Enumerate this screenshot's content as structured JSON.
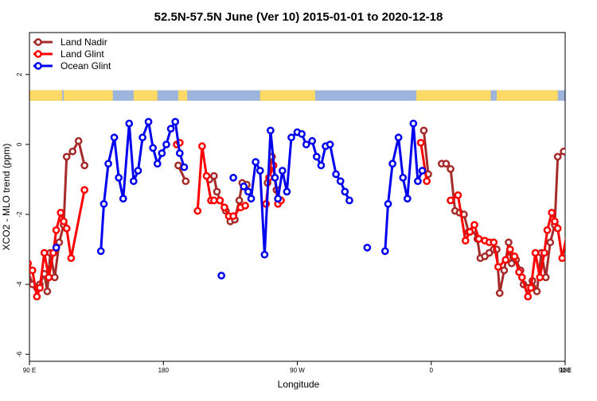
{
  "chart_data": {
    "type": "line",
    "title": "52.5N-57.5N June (Ver 10)   2015-01-01 to 2020-12-18",
    "xlabel": "Longitude",
    "ylabel": "XCO2 - MLO trend (ppm)",
    "xlim": [
      90,
      450
    ],
    "ylim": [
      -6.2,
      3.2
    ],
    "x_ticks": [
      {
        "value": 90,
        "label": "90 E"
      },
      {
        "value": 180,
        "label": "180"
      },
      {
        "value": 270,
        "label": "90 W"
      },
      {
        "value": 360,
        "label": "0"
      },
      {
        "value": 450,
        "label": "90 E"
      },
      {
        "value": 540,
        "label": "180"
      }
    ],
    "y_ticks": [
      {
        "value": -6,
        "label": "-6"
      },
      {
        "value": -4,
        "label": "-4"
      },
      {
        "value": -2,
        "label": "-2"
      },
      {
        "value": 0,
        "label": "0"
      },
      {
        "value": 2,
        "label": "2"
      }
    ],
    "legend_position": "top-left",
    "grid": false,
    "land_mask_colors": {
      "land": "#FFD966",
      "ocean": "#9DB5DC"
    },
    "series": [
      {
        "name": "Land Nadir",
        "color": "#A52A2A",
        "segments": [
          [
            [
              89,
              -3.6
            ],
            [
              92,
              -4.0
            ],
            [
              95,
              -4.1
            ],
            [
              97,
              -4.0
            ],
            [
              100,
              -3.7
            ],
            [
              102,
              -4.2
            ],
            [
              104,
              -3.1
            ],
            [
              107,
              -3.8
            ],
            [
              110,
              -2.8
            ],
            [
              113,
              -2.3
            ],
            [
              115,
              -0.35
            ],
            [
              119,
              -0.2
            ],
            [
              123,
              0.1
            ],
            [
              127,
              -0.6
            ]
          ],
          [
            [
              190,
              -0.6
            ],
            [
              195,
              -1.05
            ]
          ],
          [
            [
              211,
              -1.0
            ],
            [
              214,
              -0.9
            ],
            [
              216,
              -1.35
            ],
            [
              218,
              -1.6
            ],
            [
              222,
              -1.9
            ],
            [
              225,
              -2.2
            ],
            [
              228,
              -2.15
            ],
            [
              231,
              -1.6
            ],
            [
              233,
              -1.1
            ],
            [
              236,
              -1.15
            ]
          ],
          [
            [
              250,
              -1.1
            ],
            [
              253,
              -0.35
            ],
            [
              256,
              -1.3
            ],
            [
              259,
              -1.6
            ]
          ],
          [
            [
              355,
              0.4
            ],
            [
              358,
              -0.85
            ]
          ],
          [
            [
              367,
              -0.55
            ],
            [
              370,
              -0.55
            ],
            [
              373,
              -0.7
            ],
            [
              376,
              -1.9
            ],
            [
              379,
              -1.95
            ],
            [
              382,
              -2.0
            ],
            [
              385,
              -2.5
            ],
            [
              388,
              -2.45
            ],
            [
              391,
              -2.7
            ],
            [
              393,
              -3.25
            ],
            [
              396,
              -3.2
            ],
            [
              399,
              -3.1
            ],
            [
              402,
              -3.0
            ],
            [
              404,
              -3.0
            ],
            [
              406,
              -4.25
            ],
            [
              409,
              -3.6
            ],
            [
              412,
              -2.8
            ],
            [
              414,
              -3.4
            ],
            [
              417,
              -3.3
            ],
            [
              420,
              -3.6
            ],
            [
              422,
              -4.0
            ],
            [
              425,
              -4.1
            ],
            [
              428,
              -3.9
            ],
            [
              431,
              -4.2
            ],
            [
              434,
              -3.1
            ],
            [
              437,
              -3.8
            ],
            [
              440,
              -2.8
            ],
            [
              443,
              -2.3
            ],
            [
              445,
              -0.35
            ],
            [
              449,
              -0.2
            ],
            [
              453,
              0.1
            ],
            [
              457,
              -0.6
            ]
          ]
        ]
      },
      {
        "name": "Land Glint",
        "color": "#FF0000",
        "segments": [
          [
            [
              89,
              -3.4
            ],
            [
              92,
              -3.6
            ],
            [
              95,
              -4.35
            ],
            [
              97,
              -4.1
            ],
            [
              100,
              -3.1
            ],
            [
              103,
              -3.8
            ],
            [
              106,
              -3.1
            ],
            [
              108,
              -2.45
            ],
            [
              111,
              -1.95
            ],
            [
              113,
              -2.2
            ],
            [
              115,
              -2.4
            ],
            [
              118,
              -3.25
            ],
            [
              127,
              -1.3
            ]
          ],
          [
            [
              189,
              0.0
            ],
            [
              191,
              0.05
            ]
          ],
          [
            [
              203,
              -1.9
            ],
            [
              206,
              -0.05
            ],
            [
              209,
              -0.9
            ],
            [
              212,
              -1.6
            ],
            [
              214,
              -1.6
            ],
            [
              218,
              -1.6
            ],
            [
              221,
              -1.8
            ],
            [
              224,
              -2.05
            ],
            [
              227,
              -2.05
            ],
            [
              232,
              -1.8
            ],
            [
              235,
              -1.75
            ]
          ],
          [
            [
              249,
              -1.7
            ],
            [
              251,
              -0.95
            ],
            [
              254,
              -0.6
            ],
            [
              257,
              -1.7
            ],
            [
              259,
              -1.6
            ]
          ],
          [
            [
              353,
              0.05
            ],
            [
              357,
              -1.05
            ]
          ],
          [
            [
              373,
              -1.6
            ],
            [
              378,
              -1.45
            ],
            [
              383,
              -2.75
            ],
            [
              386,
              -2.5
            ],
            [
              389,
              -2.3
            ],
            [
              392,
              -2.7
            ],
            [
              396,
              -2.75
            ],
            [
              399,
              -2.8
            ],
            [
              402,
              -2.8
            ],
            [
              405,
              -3.5
            ],
            [
              410,
              -3.3
            ],
            [
              413,
              -3.0
            ],
            [
              416,
              -3.2
            ],
            [
              419,
              -3.65
            ],
            [
              421,
              -3.8
            ],
            [
              425,
              -4.35
            ],
            [
              427,
              -4.1
            ],
            [
              430,
              -3.1
            ],
            [
              433,
              -3.8
            ],
            [
              436,
              -3.1
            ],
            [
              438,
              -2.45
            ],
            [
              441,
              -1.95
            ],
            [
              443,
              -2.2
            ],
            [
              445,
              -2.4
            ],
            [
              448,
              -3.25
            ],
            [
              457,
              -1.3
            ]
          ]
        ]
      },
      {
        "name": "Ocean Glint",
        "color": "#0000EE",
        "segments": [
          [
            [
              108,
              -2.95
            ]
          ],
          [
            [
              138,
              -3.05
            ],
            [
              140,
              -1.7
            ],
            [
              143,
              -0.55
            ],
            [
              147,
              0.2
            ],
            [
              150,
              -0.95
            ],
            [
              153,
              -1.55
            ],
            [
              157,
              0.6
            ],
            [
              160,
              -1.05
            ],
            [
              163,
              -0.75
            ],
            [
              166,
              0.2
            ],
            [
              170,
              0.65
            ],
            [
              173,
              -0.1
            ],
            [
              176,
              -0.55
            ],
            [
              179,
              -0.25
            ],
            [
              182,
              0.0
            ],
            [
              185,
              0.45
            ],
            [
              188,
              0.65
            ],
            [
              191,
              -0.25
            ],
            [
              194,
              -0.65
            ]
          ],
          [
            [
              219,
              -3.75
            ]
          ],
          [
            [
              227,
              -0.95
            ]
          ],
          [
            [
              234,
              -1.2
            ],
            [
              237,
              -1.35
            ],
            [
              239,
              -1.55
            ],
            [
              242,
              -0.5
            ],
            [
              245,
              -0.75
            ],
            [
              248,
              -3.15
            ],
            [
              252,
              0.4
            ],
            [
              255,
              -0.95
            ],
            [
              257,
              -1.55
            ],
            [
              260,
              -0.75
            ],
            [
              263,
              -1.35
            ],
            [
              266,
              0.2
            ],
            [
              270,
              0.35
            ],
            [
              273,
              0.3
            ],
            [
              276,
              0.0
            ],
            [
              280,
              0.1
            ],
            [
              283,
              -0.35
            ],
            [
              286,
              -0.6
            ],
            [
              289,
              -0.05
            ],
            [
              292,
              0.0
            ],
            [
              296,
              -0.85
            ],
            [
              299,
              -1.05
            ],
            [
              302,
              -1.35
            ],
            [
              305,
              -1.6
            ]
          ],
          [
            [
              317,
              -2.95
            ]
          ],
          [
            [
              329,
              -3.05
            ],
            [
              331,
              -1.7
            ],
            [
              334,
              -0.55
            ],
            [
              338,
              0.2
            ],
            [
              341,
              -0.95
            ],
            [
              344,
              -1.55
            ],
            [
              348,
              0.6
            ],
            [
              351,
              -1.05
            ],
            [
              354,
              -0.75
            ]
          ]
        ]
      }
    ]
  }
}
